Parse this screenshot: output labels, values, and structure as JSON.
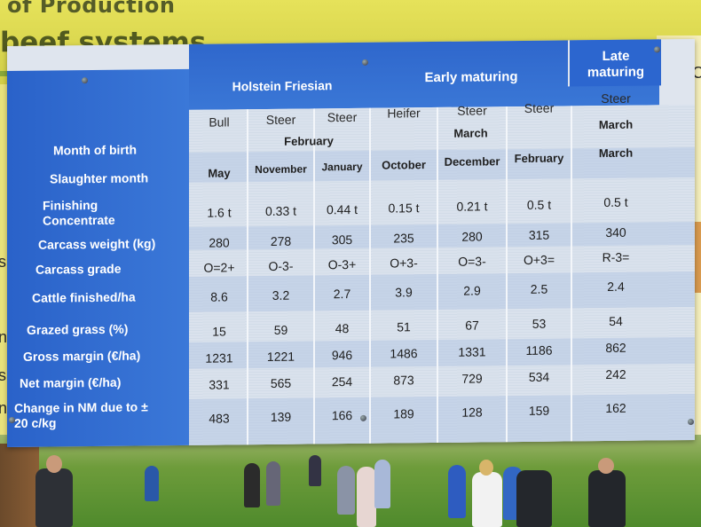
{
  "banner": {
    "top_text": "of Production",
    "title": "beef systems"
  },
  "side_left": [
    "s",
    "n",
    "s",
    "n"
  ],
  "side_right": [
    "C",
    "•",
    "•"
  ],
  "table": {
    "groups": {
      "holstein": "Holstein Friesian",
      "early": "Early maturing",
      "late": "Late maturing"
    },
    "columns": [
      {
        "type": "Bull",
        "birth": "",
        "slaughter": "May"
      },
      {
        "type": "Steer",
        "birth": "February",
        "slaughter": "November"
      },
      {
        "type": "Steer",
        "birth": "",
        "slaughter": "January"
      },
      {
        "type": "Heifer",
        "birth": "",
        "slaughter": "October"
      },
      {
        "type": "Steer",
        "birth": "March",
        "slaughter": "December"
      },
      {
        "type": "Steer",
        "birth": "",
        "slaughter": "February"
      },
      {
        "type": "Steer",
        "birth": "March",
        "slaughter": "March"
      }
    ],
    "row_labels": {
      "birth": "Month of birth",
      "slaughter": "Slaughter month",
      "concentrate": "Finishing Concentrate",
      "carcass_weight": "Carcass weight (kg)",
      "carcass_grade": "Carcass grade",
      "cattle": "Cattle finished/ha",
      "grass": "Grazed grass (%)",
      "gross": "Gross margin (€/ha)",
      "net": "Net margin (€/ha)",
      "change": "Change in NM due to ± 20 c/kg"
    },
    "rows": {
      "concentrate": [
        "1.6 t",
        "0.33 t",
        "0.44 t",
        "0.15 t",
        "0.21 t",
        "0.5 t",
        "0.5 t"
      ],
      "carcass_weight": [
        "280",
        "278",
        "305",
        "235",
        "280",
        "315",
        "340"
      ],
      "carcass_grade": [
        "O=2+",
        "O-3-",
        "O-3+",
        "O+3-",
        "O=3-",
        "O+3=",
        "R-3="
      ],
      "cattle": [
        "8.6",
        "3.2",
        "2.7",
        "3.9",
        "2.9",
        "2.5",
        "2.4"
      ],
      "grass": [
        "15",
        "59",
        "48",
        "51",
        "67",
        "53",
        "54"
      ],
      "gross": [
        "1231",
        "1221",
        "946",
        "1486",
        "1331",
        "1186",
        "862"
      ],
      "net": [
        "331",
        "565",
        "254",
        "873",
        "729",
        "534",
        "242"
      ],
      "change": [
        "483",
        "139",
        "166",
        "189",
        "128",
        "159",
        "162"
      ]
    }
  }
}
